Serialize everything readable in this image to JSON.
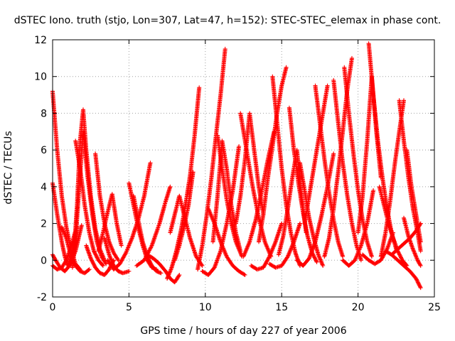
{
  "chart_data": {
    "type": "scatter",
    "title": "dSTEC Iono. truth (stjo, Lon=307, Lat=47, h=152): STEC-STEC_elemax in phase cont.",
    "xlabel": "GPS time / hours of day 227 of year 2006",
    "ylabel": "dSTEC  / TECUs",
    "xlim": [
      0,
      25
    ],
    "ylim": [
      -2,
      12
    ],
    "xticks": [
      "0",
      "5",
      "10",
      "15",
      "20",
      "25"
    ],
    "yticks": [
      "-2",
      "0",
      "2",
      "4",
      "6",
      "8",
      "10",
      "12"
    ],
    "grid": true,
    "marker": "+",
    "color": "#ff0000",
    "arcs": [
      {
        "x": [
          0.0,
          0.3,
          0.6,
          0.9,
          1.2,
          1.5,
          1.8
        ],
        "y": [
          9.2,
          6.0,
          3.5,
          1.8,
          0.6,
          -0.2,
          -0.5
        ]
      },
      {
        "x": [
          0.0,
          0.3,
          0.6,
          0.8,
          1.0,
          1.3,
          1.6
        ],
        "y": [
          4.2,
          2.5,
          1.0,
          0.2,
          -0.3,
          0.4,
          1.8
        ]
      },
      {
        "x": [
          0.0,
          0.2,
          0.5,
          0.8,
          1.1,
          1.5,
          1.9
        ],
        "y": [
          0.3,
          0.0,
          -0.4,
          -0.6,
          -0.3,
          0.5,
          1.9
        ]
      },
      {
        "x": [
          0.0,
          0.3,
          0.6,
          0.9,
          1.2,
          1.5
        ],
        "y": [
          -0.3,
          -0.5,
          -0.4,
          0.0,
          0.7,
          1.6
        ]
      },
      {
        "x": [
          0.6,
          0.9,
          1.2,
          1.5,
          1.8,
          2.1,
          2.4
        ],
        "y": [
          1.8,
          1.2,
          0.2,
          -0.3,
          -0.6,
          -0.7,
          -0.5
        ]
      },
      {
        "x": [
          1.3,
          1.5,
          1.7,
          2.0,
          2.3,
          2.6,
          2.9,
          3.2,
          3.5
        ],
        "y": [
          -0.4,
          1.0,
          3.5,
          7.0,
          4.5,
          2.5,
          1.0,
          0.2,
          -0.2
        ]
      },
      {
        "x": [
          1.4,
          1.6,
          1.8,
          2.0,
          2.2,
          2.5,
          2.8,
          3.1,
          3.4
        ],
        "y": [
          0.5,
          3.0,
          6.5,
          8.2,
          6.0,
          3.5,
          1.7,
          0.6,
          0.0
        ]
      },
      {
        "x": [
          1.5,
          1.8,
          2.1,
          2.4,
          2.7,
          3.0,
          3.3
        ],
        "y": [
          6.5,
          5.0,
          3.0,
          1.5,
          0.5,
          0.0,
          -0.3
        ]
      },
      {
        "x": [
          2.2,
          2.5,
          2.8,
          3.1,
          3.4,
          3.7,
          4.0
        ],
        "y": [
          0.8,
          0.1,
          -0.4,
          -0.7,
          -0.8,
          -0.5,
          0.0
        ]
      },
      {
        "x": [
          2.8,
          3.1,
          3.4,
          3.7,
          4.0,
          4.3
        ],
        "y": [
          5.8,
          3.5,
          2.0,
          1.0,
          0.4,
          0.0
        ]
      },
      {
        "x": [
          3.0,
          3.3,
          3.6,
          3.9,
          4.2,
          4.5
        ],
        "y": [
          0.5,
          1.5,
          2.6,
          3.6,
          2.0,
          0.8
        ]
      },
      {
        "x": [
          3.4,
          3.7,
          4.0,
          4.3,
          4.6,
          5.0
        ],
        "y": [
          1.2,
          0.3,
          -0.3,
          -0.6,
          -0.7,
          -0.6
        ]
      },
      {
        "x": [
          3.6,
          4.0,
          4.4,
          4.8,
          5.2,
          5.6,
          6.0,
          6.4
        ],
        "y": [
          0.0,
          -0.5,
          -0.2,
          0.4,
          1.2,
          2.2,
          3.5,
          5.3
        ]
      },
      {
        "x": [
          5.0,
          5.3,
          5.6,
          5.9,
          6.2,
          6.5,
          6.8
        ],
        "y": [
          4.2,
          3.0,
          1.8,
          0.8,
          0.0,
          -0.4,
          -0.5
        ]
      },
      {
        "x": [
          5.3,
          5.6,
          5.9,
          6.2,
          6.5,
          6.8,
          7.1
        ],
        "y": [
          3.5,
          2.2,
          1.0,
          0.2,
          -0.3,
          -0.6,
          -0.7
        ]
      },
      {
        "x": [
          5.5,
          6.0,
          6.5,
          7.0,
          7.4,
          7.7
        ],
        "y": [
          -0.3,
          0.0,
          0.8,
          2.0,
          3.2,
          4.0
        ]
      },
      {
        "x": [
          6.2,
          6.6,
          7.0,
          7.4,
          7.7,
          8.0,
          8.3
        ],
        "y": [
          0.3,
          0.1,
          -0.2,
          -0.6,
          -1.0,
          -1.2,
          -0.8
        ]
      },
      {
        "x": [
          7.5,
          7.8,
          8.1,
          8.4,
          8.7,
          9.0,
          9.3,
          9.6
        ],
        "y": [
          -1.0,
          -0.4,
          0.5,
          1.6,
          3.0,
          4.6,
          6.8,
          9.4
        ]
      },
      {
        "x": [
          7.7,
          8.0,
          8.3,
          8.6,
          9.0,
          9.4,
          9.8
        ],
        "y": [
          1.5,
          2.5,
          3.5,
          2.5,
          1.2,
          0.2,
          -0.3
        ]
      },
      {
        "x": [
          8.0,
          8.3,
          8.6,
          8.9,
          9.2
        ],
        "y": [
          0.0,
          0.8,
          1.8,
          3.0,
          4.8
        ]
      },
      {
        "x": [
          9.5,
          9.8,
          10.1,
          10.4,
          10.7,
          11.0,
          11.3
        ],
        "y": [
          -0.5,
          0.8,
          2.5,
          4.5,
          6.8,
          9.0,
          11.5
        ]
      },
      {
        "x": [
          9.8,
          10.2,
          10.6,
          11.0,
          11.4,
          11.8,
          12.2
        ],
        "y": [
          -0.6,
          -0.8,
          -0.4,
          0.5,
          2.0,
          3.8,
          6.2
        ]
      },
      {
        "x": [
          10.5,
          10.8,
          11.1,
          11.4,
          11.7,
          12.0,
          12.3
        ],
        "y": [
          1.0,
          3.5,
          6.5,
          5.0,
          3.0,
          1.5,
          0.5
        ]
      },
      {
        "x": [
          10.8,
          11.1,
          11.4,
          11.7,
          12.0,
          12.4
        ],
        "y": [
          6.8,
          5.0,
          3.3,
          2.0,
          1.0,
          0.2
        ]
      },
      {
        "x": [
          10.2,
          10.6,
          11.0,
          11.4,
          11.8,
          12.2,
          12.6
        ],
        "y": [
          2.8,
          2.0,
          1.0,
          0.2,
          -0.3,
          -0.6,
          -0.8
        ]
      },
      {
        "x": [
          12.0,
          12.3,
          12.6,
          12.9,
          13.2,
          13.5,
          13.8
        ],
        "y": [
          2.0,
          3.5,
          5.5,
          8.0,
          6.0,
          4.0,
          2.5
        ]
      },
      {
        "x": [
          12.3,
          12.7,
          13.1,
          13.5,
          13.9,
          14.3
        ],
        "y": [
          8.0,
          6.0,
          4.0,
          2.3,
          1.0,
          0.2
        ]
      },
      {
        "x": [
          12.5,
          12.9,
          13.3,
          13.7,
          14.1,
          14.5
        ],
        "y": [
          0.2,
          1.0,
          2.2,
          3.8,
          5.5,
          7.0
        ]
      },
      {
        "x": [
          13.0,
          13.4,
          13.8,
          14.2,
          14.6,
          15.0
        ],
        "y": [
          -0.3,
          -0.5,
          -0.4,
          0.2,
          1.0,
          2.0
        ]
      },
      {
        "x": [
          13.5,
          13.8,
          14.1,
          14.4,
          14.7,
          15.0,
          15.3
        ],
        "y": [
          1.0,
          2.5,
          4.5,
          6.2,
          8.0,
          9.5,
          10.5
        ]
      },
      {
        "x": [
          14.4,
          14.7,
          15.0,
          15.3,
          15.6,
          15.9,
          16.2
        ],
        "y": [
          10.0,
          7.5,
          5.0,
          3.0,
          1.5,
          0.4,
          -0.3
        ]
      },
      {
        "x": [
          14.8,
          15.1,
          15.4,
          15.7,
          16.0,
          16.3,
          16.6
        ],
        "y": [
          0.3,
          1.3,
          2.8,
          4.5,
          6.0,
          3.5,
          1.5
        ]
      },
      {
        "x": [
          14.2,
          14.6,
          15.0,
          15.4,
          15.8,
          16.2
        ],
        "y": [
          -0.2,
          -0.4,
          -0.3,
          0.2,
          1.0,
          2.0
        ]
      },
      {
        "x": [
          15.5,
          15.8,
          16.1,
          16.4,
          16.7,
          17.0,
          17.3
        ],
        "y": [
          8.3,
          6.0,
          4.2,
          2.6,
          1.3,
          0.4,
          -0.1
        ]
      },
      {
        "x": [
          16.2,
          16.5,
          16.8,
          17.1,
          17.4,
          17.7
        ],
        "y": [
          5.3,
          3.8,
          2.3,
          1.2,
          0.3,
          -0.3
        ]
      },
      {
        "x": [
          16.0,
          16.4,
          16.8,
          17.2,
          17.6,
          18.0,
          18.4
        ],
        "y": [
          0.0,
          -0.3,
          0.1,
          1.0,
          2.4,
          4.0,
          5.8
        ]
      },
      {
        "x": [
          16.5,
          16.8,
          17.1,
          17.4,
          17.7,
          18.0
        ],
        "y": [
          2.0,
          3.5,
          5.0,
          6.5,
          8.0,
          9.5
        ]
      },
      {
        "x": [
          17.2,
          17.5,
          17.8,
          18.1,
          18.4,
          18.7,
          19.0
        ],
        "y": [
          9.5,
          7.5,
          5.5,
          3.7,
          2.2,
          1.0,
          0.2
        ]
      },
      {
        "x": [
          17.8,
          18.1,
          18.4,
          18.7,
          19.0,
          19.3,
          19.6
        ],
        "y": [
          0.2,
          1.2,
          2.8,
          4.8,
          7.0,
          9.3,
          11.0
        ]
      },
      {
        "x": [
          18.4,
          18.7,
          19.0,
          19.3,
          19.6,
          19.9,
          20.2
        ],
        "y": [
          9.8,
          7.5,
          5.3,
          3.5,
          2.0,
          0.8,
          0.0
        ]
      },
      {
        "x": [
          19.1,
          19.4,
          19.7,
          20.0,
          20.3,
          20.6,
          20.9
        ],
        "y": [
          10.5,
          8.0,
          5.8,
          3.8,
          2.2,
          1.0,
          0.2
        ]
      },
      {
        "x": [
          19.0,
          19.4,
          19.8,
          20.2,
          20.6,
          21.0
        ],
        "y": [
          0.0,
          -0.3,
          0.0,
          0.8,
          2.0,
          3.8
        ]
      },
      {
        "x": [
          20.0,
          20.3,
          20.6,
          20.9,
          21.2,
          21.5
        ],
        "y": [
          1.5,
          3.5,
          6.5,
          10.0,
          7.0,
          4.5
        ]
      },
      {
        "x": [
          20.7,
          21.0,
          21.3,
          21.6,
          21.9,
          22.2,
          22.5
        ],
        "y": [
          11.8,
          9.0,
          6.5,
          4.5,
          2.8,
          1.5,
          0.6
        ]
      },
      {
        "x": [
          20.3,
          20.7,
          21.1,
          21.5,
          21.9,
          22.3
        ],
        "y": [
          0.3,
          0.0,
          -0.2,
          0.0,
          0.6,
          1.5
        ]
      },
      {
        "x": [
          21.4,
          21.7,
          22.0,
          22.3,
          22.6,
          22.9,
          23.2
        ],
        "y": [
          4.0,
          3.0,
          2.0,
          1.2,
          0.5,
          0.0,
          -0.3
        ]
      },
      {
        "x": [
          21.5,
          21.8,
          22.1,
          22.4,
          22.7,
          23.0
        ],
        "y": [
          0.2,
          1.5,
          3.2,
          5.2,
          7.0,
          8.7
        ]
      },
      {
        "x": [
          22.7,
          23.0,
          23.3,
          23.6,
          23.9,
          24.1
        ],
        "y": [
          8.7,
          6.5,
          4.5,
          2.8,
          1.5,
          0.5
        ]
      },
      {
        "x": [
          23.0,
          23.3,
          23.6,
          23.9,
          24.1
        ],
        "y": [
          2.3,
          1.3,
          0.6,
          0.0,
          -0.3
        ]
      },
      {
        "x": [
          22.2,
          22.6,
          23.0,
          23.4,
          23.8,
          24.1
        ],
        "y": [
          0.3,
          0.6,
          0.9,
          1.2,
          1.6,
          2.0
        ]
      },
      {
        "x": [
          21.8,
          22.2,
          22.6,
          23.0,
          23.4,
          23.8,
          24.1
        ],
        "y": [
          0.5,
          0.3,
          0.0,
          -0.3,
          -0.6,
          -1.0,
          -1.5
        ]
      },
      {
        "x": [
          23.2,
          23.5,
          23.8,
          24.1
        ],
        "y": [
          6.0,
          4.0,
          2.5,
          1.0
        ]
      }
    ]
  }
}
